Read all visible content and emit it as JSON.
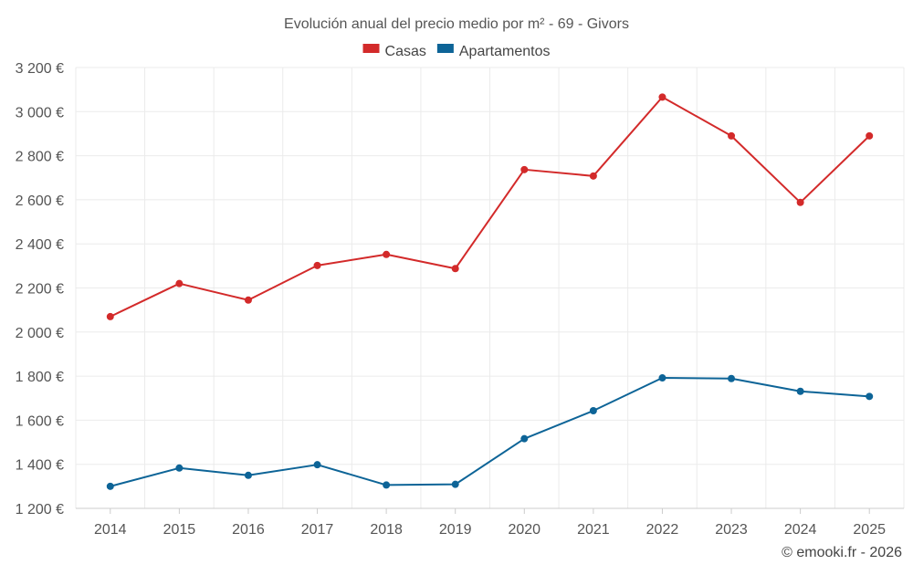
{
  "chart_data": {
    "type": "line",
    "title": "Evolución anual del precio medio por m² - 69 - Givors",
    "xlabel": "",
    "ylabel": "",
    "categories": [
      "2014",
      "2015",
      "2016",
      "2017",
      "2018",
      "2019",
      "2020",
      "2021",
      "2022",
      "2023",
      "2024",
      "2025"
    ],
    "series": [
      {
        "name": "Casas",
        "color": "#d32a2a",
        "values": [
          2070,
          2220,
          2145,
          2302,
          2352,
          2288,
          2737,
          2708,
          3066,
          2890,
          2588,
          2890
        ]
      },
      {
        "name": "Apartamentos",
        "color": "#0d6497",
        "values": [
          1300,
          1383,
          1350,
          1398,
          1306,
          1309,
          1516,
          1643,
          1792,
          1789,
          1731,
          1708
        ]
      }
    ],
    "ylim": [
      1200,
      3200
    ],
    "yticks": [
      1200,
      1400,
      1600,
      1800,
      2000,
      2200,
      2400,
      2600,
      2800,
      3000,
      3200
    ],
    "ytick_labels": [
      "1 200 €",
      "1 400 €",
      "1 600 €",
      "1 800 €",
      "2 000 €",
      "2 200 €",
      "2 400 €",
      "2 600 €",
      "2 800 €",
      "3 000 €",
      "3 200 €"
    ],
    "grid": true,
    "legend_position": "top-center"
  },
  "credit": "© emooki.fr - 2026"
}
